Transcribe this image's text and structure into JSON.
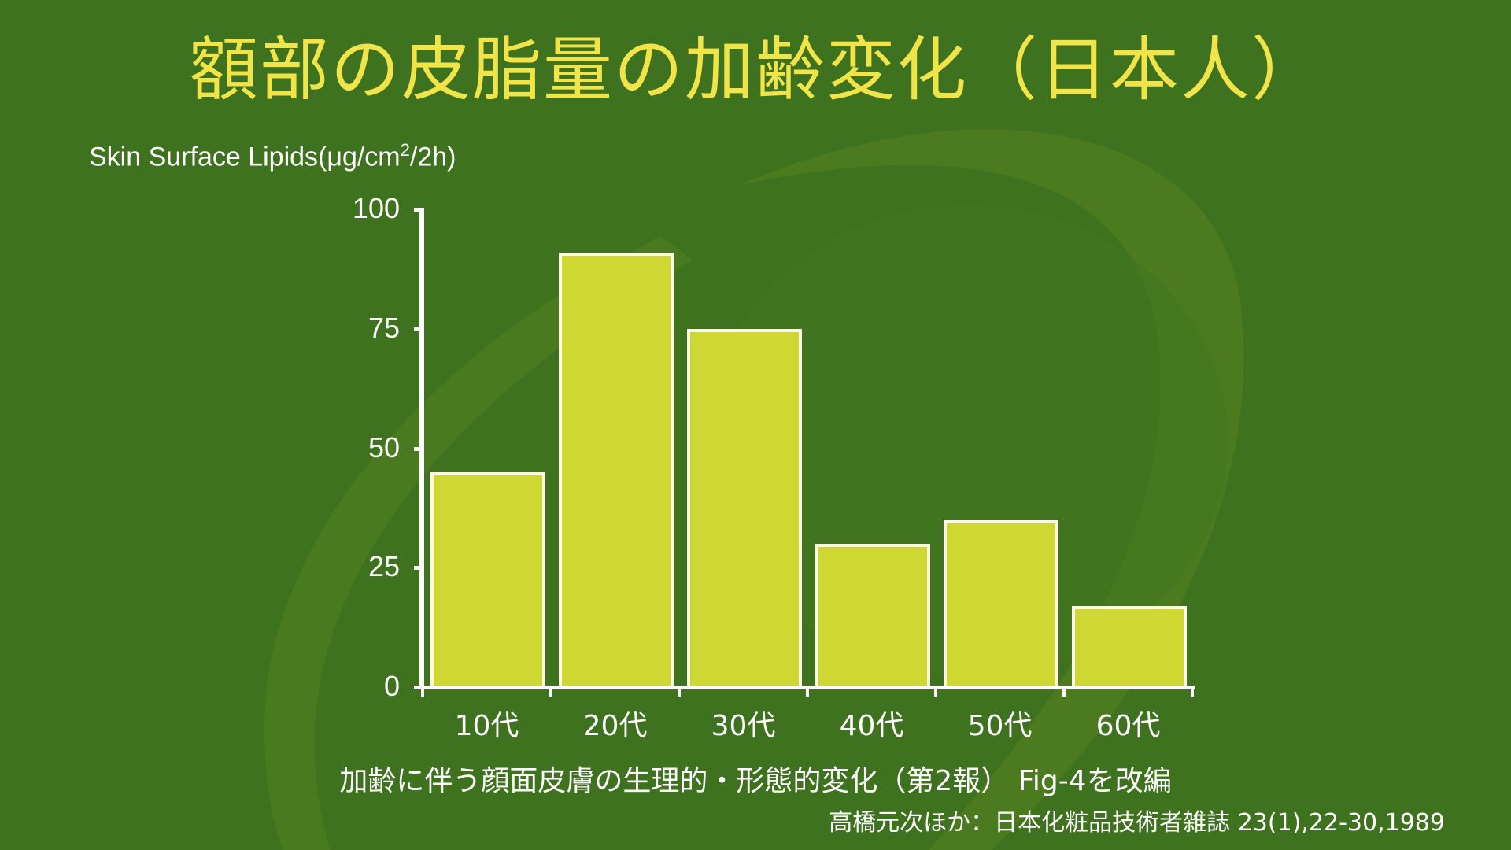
{
  "title": "額部の皮脂量の加齢変化（日本人）",
  "y_axis_label_main": "Skin Surface Lipids(μg/cm",
  "y_axis_label_sup": "2",
  "y_axis_label_tail": "/2h)",
  "caption": "加齢に伴う顔面皮膚の生理的・形態的変化（第2報） Fig-4を改編",
  "source": "高橋元次ほか：日本化粧品技術者雑誌 23(1),22-30,1989",
  "colors": {
    "background": "#3f721f",
    "swoosh": "#4b7a1f",
    "bar_fill": "#cfd733",
    "bar_border": "#fdfbe6",
    "title": "#f1e448",
    "text": "#ffffff"
  },
  "chart_data": {
    "type": "bar",
    "title": "額部の皮脂量の加齢変化（日本人）",
    "xlabel": "",
    "ylabel": "Skin Surface Lipids(μg/cm2/2h)",
    "categories": [
      "10代",
      "20代",
      "30代",
      "40代",
      "50代",
      "60代"
    ],
    "values": [
      45,
      91,
      75,
      30,
      35,
      17
    ],
    "ylim": [
      0,
      100
    ],
    "yticks": [
      0,
      25,
      50,
      75,
      100
    ],
    "grid": false,
    "legend": "none",
    "annotations": [
      "加齢に伴う顔面皮膚の生理的・形態的変化（第2報） Fig-4を改編",
      "高橋元次ほか：日本化粧品技術者雑誌 23(1),22-30,1989"
    ]
  }
}
